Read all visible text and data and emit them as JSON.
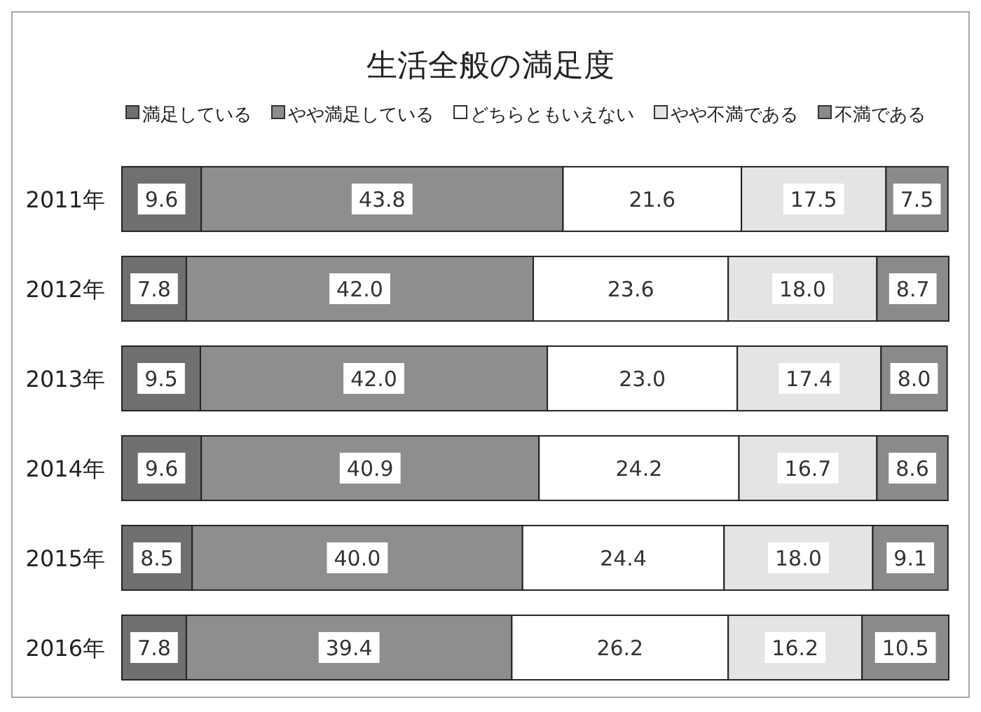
{
  "chart_data": {
    "type": "bar",
    "orientation": "horizontal",
    "stacked": true,
    "title": "生活全般の満足度",
    "legend": "top",
    "categories": [
      "2011年",
      "2012年",
      "2013年",
      "2014年",
      "2015年",
      "2016年"
    ],
    "series": [
      {
        "name": "満足している",
        "color": "#707070",
        "values": [
          9.6,
          7.8,
          9.5,
          9.6,
          8.5,
          7.8
        ],
        "value_labels": [
          "9.6",
          "7.8",
          "9.5",
          "9.6",
          "8.5",
          "7.8"
        ]
      },
      {
        "name": "やや満足している",
        "color": "#8e8e8e",
        "values": [
          43.8,
          42.0,
          42.0,
          40.9,
          40.0,
          39.4
        ],
        "value_labels": [
          "43.8",
          "42.0",
          "42.0",
          "40.9",
          "40.0",
          "39.4"
        ]
      },
      {
        "name": "どちらともいえない",
        "color": "#ffffff",
        "values": [
          21.6,
          23.6,
          23.0,
          24.2,
          24.4,
          26.2
        ],
        "value_labels": [
          "21.6",
          "23.6",
          "23.0",
          "24.2",
          "24.4",
          "26.2"
        ]
      },
      {
        "name": "やや不満である",
        "color": "#e4e4e4",
        "values": [
          17.5,
          18.0,
          17.4,
          16.7,
          18.0,
          16.2
        ],
        "value_labels": [
          "17.5",
          "18.0",
          "17.4",
          "16.7",
          "18.0",
          "16.2"
        ]
      },
      {
        "name": "不満である",
        "color": "#8a8a8a",
        "values": [
          7.5,
          8.7,
          8.0,
          8.6,
          9.1,
          10.5
        ],
        "value_labels": [
          "7.5",
          "8.7",
          "8.0",
          "8.6",
          "9.1",
          "10.5"
        ]
      }
    ]
  }
}
